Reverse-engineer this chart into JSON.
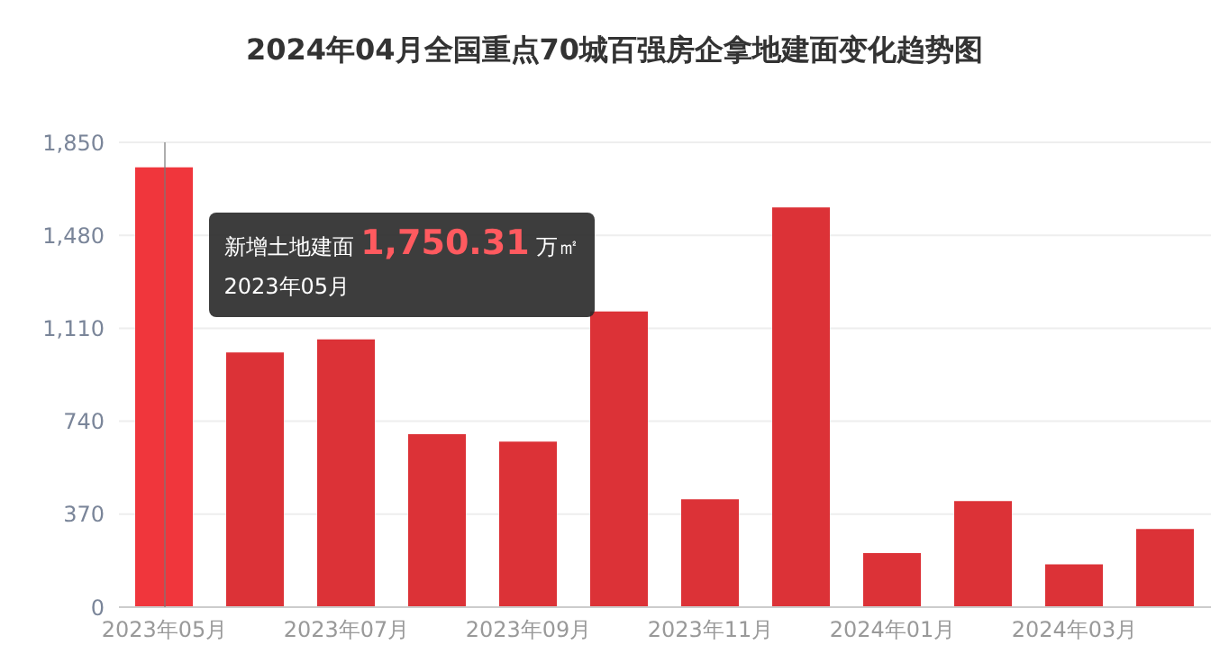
{
  "chart_data": {
    "type": "bar",
    "title": "2024年04月全国重点70城百强房企拿地建面变化趋势图",
    "categories": [
      "2023年05月",
      null,
      "2023年07月",
      null,
      "2023年09月",
      null,
      "2023年11月",
      null,
      "2024年01月",
      null,
      "2024年03月",
      null
    ],
    "values": [
      1750.31,
      1014,
      1066,
      688,
      659,
      1177,
      429,
      1591,
      215,
      422,
      170,
      311
    ],
    "colors": [
      "#f0363c",
      "#dc3237",
      "#dc3237",
      "#dc3237",
      "#dc3237",
      "#dc3237",
      "#dc3237",
      "#dc3237",
      "#dc3237",
      "#dc3237",
      "#dc3237",
      "#dc3237"
    ],
    "ylim": [
      0,
      1850
    ],
    "yticks": [
      0,
      {
        "value": 370,
        "label": "370"
      },
      {
        "value": 740,
        "label": "740"
      },
      {
        "value": 1110,
        "label": "1,110"
      },
      {
        "value": 1480,
        "label": "1,480"
      },
      {
        "value": 1850,
        "label": "1,850"
      }
    ],
    "grid": "y",
    "annotations": [
      {
        "text": "新增土地建面 1,750.31 万㎡",
        "x": "2023年05月",
        "y": 1750.31
      },
      "2023年05月"
    ]
  }
}
